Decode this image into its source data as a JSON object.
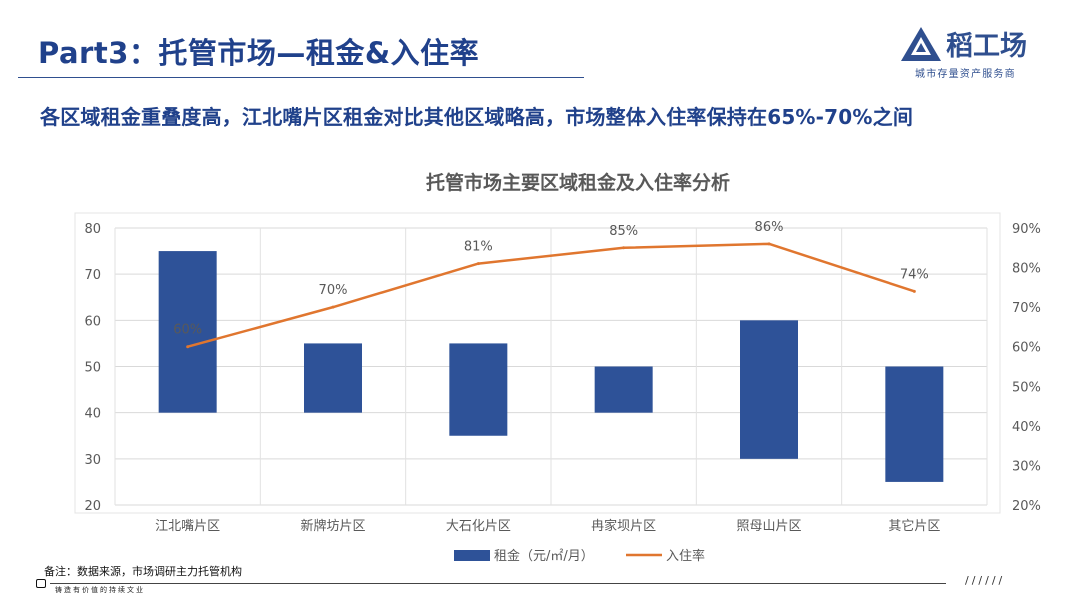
{
  "header": {
    "title": "Part3：托管市场—租金&入住率",
    "logo_name": "稻工场",
    "logo_tagline": "城市存量资产服务商",
    "brand_color": "#2f4f8f"
  },
  "headline": "各区域租金重叠度高，江北嘴片区租金对比其他区域略高，市场整体入住率保持在65%-70%之间",
  "chart_data": {
    "type": "bar",
    "title": "托管市场主要区域租金及入住率分析",
    "categories": [
      "江北嘴片区",
      "新牌坊片区",
      "大石化片区",
      "冉家坝片区",
      "照母山片区",
      "其它片区"
    ],
    "series": [
      {
        "name": "租金（元/㎡/月）",
        "kind": "range-bar",
        "axis": "left",
        "low": [
          40,
          40,
          35,
          40,
          30,
          25
        ],
        "high": [
          75,
          55,
          55,
          50,
          60,
          50
        ],
        "color": "#2e5298"
      },
      {
        "name": "入住率",
        "kind": "line",
        "axis": "right",
        "values": [
          60,
          70,
          81,
          85,
          86,
          74
        ],
        "labels": [
          "60%",
          "70%",
          "81%",
          "85%",
          "86%",
          "74%"
        ],
        "color": "#e0762f"
      }
    ],
    "yleft": {
      "min": 20,
      "max": 80,
      "ticks": [
        "20",
        "30",
        "40",
        "50",
        "60",
        "70",
        "80"
      ]
    },
    "yright": {
      "min": 20,
      "max": 90,
      "ticks": [
        "20%",
        "30%",
        "40%",
        "50%",
        "60%",
        "70%",
        "80%",
        "90%"
      ]
    },
    "grid": true,
    "legend_position": "bottom"
  },
  "footer": {
    "note": "备注：数据来源，市场调研主力托管机构",
    "slogan": "铸造有价值的持续文业",
    "dashes": "//////"
  }
}
